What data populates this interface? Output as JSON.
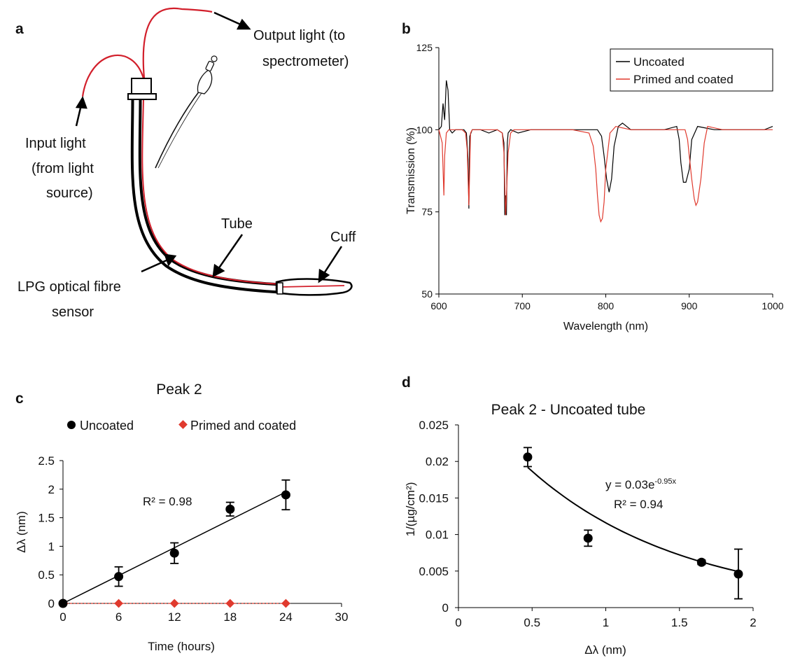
{
  "panels": {
    "a": {
      "letter": "a",
      "labels": {
        "output_light_1": "Output light (to",
        "output_light_2": "spectrometer)",
        "input_light_1": "Input light",
        "input_light_2": "(from light",
        "input_light_3": "source)",
        "tube": "Tube",
        "cuff": "Cuff",
        "sensor_1": "LPG optical fibre",
        "sensor_2": "sensor"
      },
      "colors": {
        "fibre": "#d21f2b",
        "tube": "#000000"
      }
    },
    "b": {
      "letter": "b"
    },
    "c": {
      "letter": "c"
    },
    "d": {
      "letter": "d"
    }
  },
  "chart_data": [
    {
      "id": "b",
      "type": "line",
      "title": "",
      "xlabel": "Wavelength (nm)",
      "ylabel": "Transmission (%)",
      "xlim": [
        600,
        1000
      ],
      "ylim": [
        50,
        125
      ],
      "xticks": [
        600,
        700,
        800,
        900,
        1000
      ],
      "yticks": [
        50,
        75,
        100,
        125
      ],
      "legend": "top-right",
      "series": [
        {
          "name": "Uncoated",
          "color": "#000000",
          "x": [
            600,
            603,
            605,
            607,
            609,
            611,
            613,
            616,
            620,
            625,
            630,
            633,
            635,
            636,
            637,
            640,
            650,
            660,
            670,
            676,
            678,
            679,
            680,
            681,
            682,
            683,
            686,
            695,
            710,
            730,
            750,
            770,
            790,
            795,
            798,
            801,
            804,
            807,
            810,
            815,
            820,
            830,
            850,
            870,
            885,
            888,
            890,
            893,
            896,
            900,
            903,
            910,
            930,
            950,
            970,
            990,
            1000
          ],
          "y": [
            100,
            101,
            108,
            103,
            115,
            112,
            100,
            99,
            100,
            100,
            100,
            99,
            91,
            76,
            98,
            100,
            100,
            99,
            100,
            99,
            96,
            74,
            80,
            74,
            96,
            99,
            100,
            99,
            100,
            100,
            100,
            100,
            100,
            98,
            92,
            85,
            81,
            85,
            95,
            101,
            102,
            100,
            100,
            100,
            101,
            97,
            90,
            84,
            84,
            88,
            97,
            101,
            100,
            100,
            100,
            100,
            101
          ]
        },
        {
          "name": "Primed and coated",
          "color": "#e03a2e",
          "x": [
            600,
            602,
            604,
            605,
            606,
            607,
            609,
            612,
            620,
            628,
            632,
            634,
            636,
            638,
            640,
            650,
            670,
            676,
            678,
            680,
            681,
            683,
            686,
            690,
            700,
            720,
            760,
            780,
            785,
            788,
            790,
            792,
            794,
            796,
            798,
            800,
            805,
            812,
            830,
            880,
            895,
            898,
            900,
            903,
            906,
            908,
            910,
            914,
            918,
            922,
            940,
            970,
            1000
          ],
          "y": [
            100,
            98,
            96,
            88,
            80,
            92,
            99,
            100,
            100,
            100,
            99,
            94,
            77,
            99,
            100,
            100,
            100,
            99,
            93,
            74,
            80,
            93,
            99,
            100,
            100,
            100,
            100,
            99,
            95,
            88,
            80,
            74,
            72,
            73,
            78,
            88,
            99,
            101,
            100,
            100,
            100,
            97,
            92,
            85,
            79,
            77,
            78,
            85,
            96,
            101,
            100,
            100,
            100
          ]
        }
      ]
    },
    {
      "id": "c",
      "type": "scatter",
      "title": "Peak 2",
      "xlabel": "Time (hours)",
      "ylabel": "Δλ (nm)",
      "xlim": [
        0,
        30
      ],
      "ylim": [
        0,
        2.5
      ],
      "xticks": [
        "0",
        "6",
        "12",
        "18",
        "24",
        "30"
      ],
      "yticks": [
        "0",
        "0.5",
        "1",
        "1.5",
        "2",
        "2.5"
      ],
      "legend": "top",
      "annotation": "R² = 0.98",
      "series": [
        {
          "name": "Uncoated",
          "color": "#000000",
          "marker": "circle",
          "x": [
            0,
            6,
            12,
            18,
            24
          ],
          "y": [
            0,
            0.47,
            0.88,
            1.65,
            1.9
          ],
          "err": [
            0,
            0.17,
            0.18,
            0.12,
            0.26
          ]
        },
        {
          "name": "Primed and coated",
          "color": "#e03a2e",
          "marker": "diamond",
          "x": [
            0,
            6,
            12,
            18,
            24
          ],
          "y": [
            0,
            0,
            0,
            0,
            0
          ]
        }
      ],
      "trendline": {
        "x": [
          0,
          24
        ],
        "y": [
          0,
          1.95
        ]
      }
    },
    {
      "id": "d",
      "type": "scatter",
      "title": "Peak 2 - Uncoated tube",
      "xlabel": "Δλ (nm)",
      "ylabel": "1/(µg/cm²)",
      "xlim": [
        0,
        2
      ],
      "ylim": [
        0,
        0.025
      ],
      "xticks": [
        "0",
        "0.5",
        "1",
        "1.5",
        "2"
      ],
      "yticks": [
        "0",
        "0.005",
        "0.01",
        "0.015",
        "0.02",
        "0.025"
      ],
      "annotation_1": "y = 0.03e",
      "annotation_1_sup": "-0.95x",
      "annotation_2": "R² = 0.94",
      "series": [
        {
          "name": "",
          "color": "#000000",
          "marker": "circle",
          "x": [
            0.47,
            0.88,
            1.65,
            1.9
          ],
          "y": [
            0.0206,
            0.0095,
            0.0062,
            0.0046
          ],
          "err": [
            0.0013,
            0.0011,
            0.0003,
            0.0034
          ]
        }
      ],
      "trendline": {
        "type": "exponential",
        "a": 0.03,
        "b": -0.95,
        "x_from": 0.47,
        "x_to": 1.9
      }
    }
  ]
}
